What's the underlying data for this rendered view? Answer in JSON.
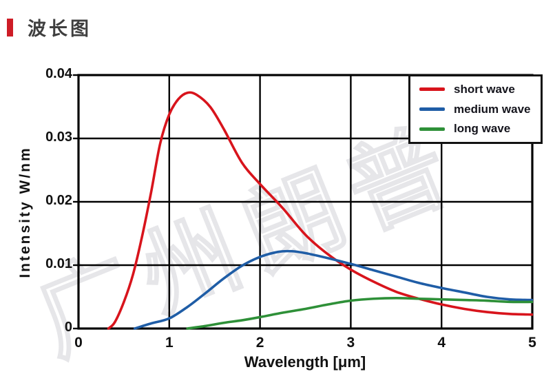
{
  "page": {
    "title": "波长图",
    "accent_color": "#ce1c26",
    "watermark": "广州朗普",
    "watermark_color": "#e6e6e9"
  },
  "chart_data": {
    "type": "line",
    "title": "",
    "xlabel": "Wavelength [μm]",
    "ylabel": "Intensity W/nm",
    "xlim": [
      0,
      5
    ],
    "ylim": [
      0,
      0.04
    ],
    "grid": true,
    "grid_color": "#000000",
    "legend_position": "top-right",
    "xticks": [
      "0",
      "1",
      "2",
      "3",
      "4",
      "5"
    ],
    "yticks": [
      "0",
      "0.01",
      "0.02",
      "0.03",
      "0.04"
    ],
    "series": [
      {
        "name": "short wave",
        "color": "#d8141c",
        "points": [
          [
            0.33,
            0
          ],
          [
            0.4,
            0.001
          ],
          [
            0.5,
            0.0042
          ],
          [
            0.6,
            0.0085
          ],
          [
            0.7,
            0.0145
          ],
          [
            0.8,
            0.0215
          ],
          [
            0.9,
            0.0292
          ],
          [
            1.0,
            0.0338
          ],
          [
            1.1,
            0.0362
          ],
          [
            1.2,
            0.0372
          ],
          [
            1.3,
            0.0369
          ],
          [
            1.45,
            0.035
          ],
          [
            1.6,
            0.0315
          ],
          [
            1.8,
            0.0262
          ],
          [
            2.0,
            0.0228
          ],
          [
            2.25,
            0.019
          ],
          [
            2.5,
            0.0148
          ],
          [
            2.75,
            0.0117
          ],
          [
            3.0,
            0.0093
          ],
          [
            3.25,
            0.0074
          ],
          [
            3.5,
            0.0058
          ],
          [
            3.75,
            0.0047
          ],
          [
            4.0,
            0.0038
          ],
          [
            4.25,
            0.0031
          ],
          [
            4.5,
            0.0026
          ],
          [
            4.75,
            0.0023
          ],
          [
            5.0,
            0.0022
          ]
        ]
      },
      {
        "name": "medium wave",
        "color": "#1f5da6",
        "points": [
          [
            0.62,
            0
          ],
          [
            0.8,
            0.0008
          ],
          [
            1.0,
            0.0016
          ],
          [
            1.2,
            0.0034
          ],
          [
            1.4,
            0.0056
          ],
          [
            1.6,
            0.0079
          ],
          [
            1.8,
            0.0099
          ],
          [
            2.0,
            0.0113
          ],
          [
            2.2,
            0.0121
          ],
          [
            2.35,
            0.0122
          ],
          [
            2.5,
            0.0119
          ],
          [
            2.75,
            0.0111
          ],
          [
            3.0,
            0.0102
          ],
          [
            3.25,
            0.0092
          ],
          [
            3.5,
            0.0082
          ],
          [
            3.75,
            0.0072
          ],
          [
            4.0,
            0.0064
          ],
          [
            4.25,
            0.0057
          ],
          [
            4.5,
            0.005
          ],
          [
            4.75,
            0.0046
          ],
          [
            5.0,
            0.0045
          ]
        ]
      },
      {
        "name": "long wave",
        "color": "#2e9038",
        "points": [
          [
            1.2,
            0
          ],
          [
            1.4,
            0.0004
          ],
          [
            1.6,
            0.0009
          ],
          [
            1.8,
            0.0013
          ],
          [
            2.0,
            0.0018
          ],
          [
            2.25,
            0.0025
          ],
          [
            2.5,
            0.0031
          ],
          [
            2.75,
            0.0038
          ],
          [
            3.0,
            0.0044
          ],
          [
            3.25,
            0.0047
          ],
          [
            3.5,
            0.0048
          ],
          [
            3.75,
            0.0047
          ],
          [
            4.0,
            0.0046
          ],
          [
            4.25,
            0.0045
          ],
          [
            4.5,
            0.0044
          ],
          [
            4.75,
            0.0042
          ],
          [
            5.0,
            0.0042
          ]
        ]
      }
    ]
  }
}
